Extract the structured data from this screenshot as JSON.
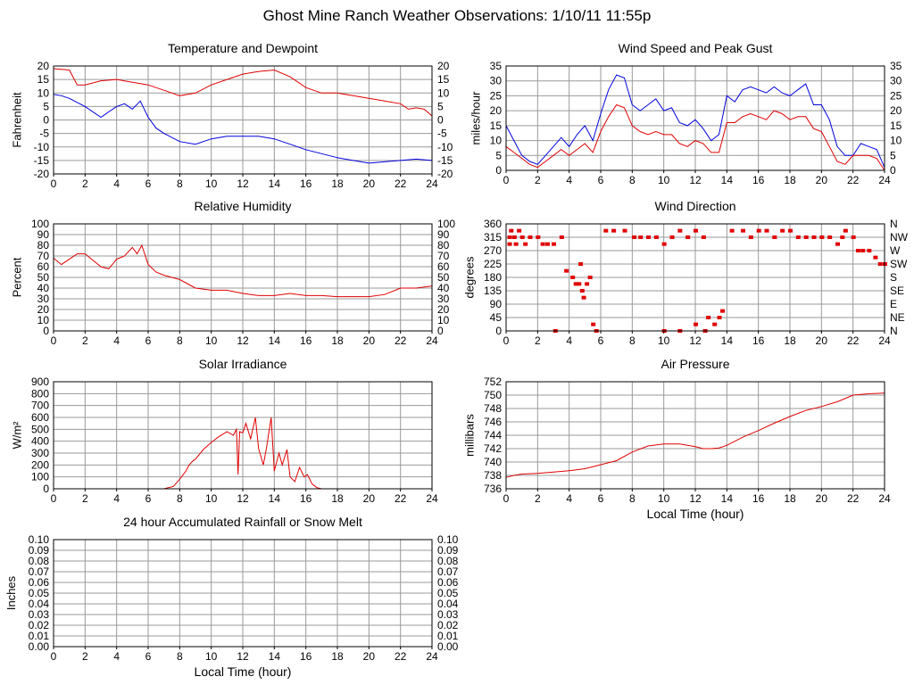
{
  "page_title": "Ghost Mine Ranch Weather Observations: 1/10/11 11:55p",
  "colors": {
    "red": "#e00000",
    "blue": "#0000e0",
    "grid": "#9a9a9a",
    "frame": "#000000"
  },
  "chart_data": [
    {
      "id": "temperature",
      "type": "line",
      "title": "Temperature and Dewpoint",
      "xlabel": "",
      "ylabel": "Fahrenheit",
      "xlim": [
        0,
        24
      ],
      "ylim": [
        -20,
        20
      ],
      "xticks": [
        "0",
        "2",
        "4",
        "6",
        "8",
        "10",
        "12",
        "14",
        "16",
        "18",
        "20",
        "22",
        "24"
      ],
      "yticks": [
        "20",
        "15",
        "10",
        "5",
        "0",
        "-5",
        "-10",
        "-15",
        "-20"
      ],
      "right_axis": true,
      "grid": true,
      "series": [
        {
          "color": "#e00000",
          "x": [
            0,
            1,
            1.5,
            2,
            3,
            4,
            5,
            6,
            7,
            8,
            9,
            10,
            11,
            12,
            13,
            14,
            15,
            16,
            17,
            18,
            19,
            20,
            21,
            22,
            22.5,
            23,
            23.5,
            24
          ],
          "values": [
            19,
            18.5,
            13,
            13,
            14.5,
            15,
            14,
            13,
            11,
            9,
            10,
            13,
            15,
            17,
            18,
            18.5,
            16,
            12,
            10,
            10,
            9,
            8,
            7,
            6,
            4,
            4.5,
            4,
            1.5
          ]
        },
        {
          "color": "#0000e0",
          "x": [
            0,
            0.5,
            1,
            2,
            3,
            3.5,
            4,
            4.5,
            5,
            5.5,
            6,
            6.5,
            7,
            8,
            9,
            10,
            11,
            12,
            13,
            14,
            15,
            16,
            17,
            18,
            19,
            20,
            21,
            22,
            23,
            24
          ],
          "values": [
            9.5,
            9,
            8,
            5,
            1,
            3,
            5,
            6,
            4,
            7,
            1,
            -3,
            -5,
            -8,
            -9,
            -7,
            -6,
            -6,
            -6,
            -7,
            -9,
            -11,
            -12.5,
            -14,
            -15,
            -16,
            -15.5,
            -15,
            -14.5,
            -15
          ]
        }
      ]
    },
    {
      "id": "wind_speed",
      "type": "line",
      "title": "Wind Speed and Peak Gust",
      "xlabel": "",
      "ylabel": "miles/hour",
      "xlim": [
        0,
        24
      ],
      "ylim": [
        0,
        35
      ],
      "xticks": [
        "0",
        "2",
        "4",
        "6",
        "8",
        "10",
        "12",
        "14",
        "16",
        "18",
        "20",
        "22",
        "24"
      ],
      "yticks": [
        "35",
        "30",
        "25",
        "20",
        "15",
        "10",
        "5",
        "0"
      ],
      "right_axis": true,
      "grid": true,
      "series": [
        {
          "color": "#0000e0",
          "x": [
            0,
            0.5,
            1,
            1.5,
            2,
            2.5,
            3,
            3.5,
            4,
            4.5,
            5,
            5.5,
            6,
            6.5,
            7,
            7.5,
            8,
            8.5,
            9,
            9.5,
            10,
            10.5,
            11,
            11.5,
            12,
            12.5,
            13,
            13.5,
            14,
            14.5,
            15,
            15.5,
            16,
            16.5,
            17,
            17.5,
            18,
            18.5,
            19,
            19.5,
            20,
            20.5,
            21,
            21.5,
            22,
            22.5,
            23,
            23.5,
            24
          ],
          "values": [
            15,
            10,
            5,
            3,
            2,
            5,
            8,
            11,
            8,
            12,
            15,
            10,
            19,
            27,
            32,
            31,
            22,
            20,
            22,
            24,
            20,
            21,
            16,
            15,
            17,
            14,
            10,
            12,
            25,
            23,
            27,
            28,
            27,
            26,
            28,
            26,
            25,
            27,
            29,
            22,
            22,
            17,
            8,
            5,
            5,
            9,
            8,
            7,
            1
          ]
        },
        {
          "color": "#e00000",
          "x": [
            0,
            0.5,
            1,
            1.5,
            2,
            2.5,
            3,
            3.5,
            4,
            4.5,
            5,
            5.5,
            6,
            6.5,
            7,
            7.5,
            8,
            8.5,
            9,
            9.5,
            10,
            10.5,
            11,
            11.5,
            12,
            12.5,
            13,
            13.5,
            14,
            14.5,
            15,
            15.5,
            16,
            16.5,
            17,
            17.5,
            18,
            18.5,
            19,
            19.5,
            20,
            20.5,
            21,
            21.5,
            22,
            22.5,
            23,
            23.5,
            24
          ],
          "values": [
            8,
            6,
            4,
            2,
            1,
            3,
            5,
            7,
            5,
            7,
            9,
            6,
            13,
            18,
            22,
            21,
            15,
            13,
            12,
            13,
            12,
            12,
            9,
            8,
            10,
            9,
            6,
            6,
            16,
            16,
            18,
            19,
            18,
            17,
            20,
            19,
            17,
            18,
            18,
            14,
            13,
            8,
            3,
            2,
            5,
            5,
            5,
            4,
            0
          ]
        }
      ]
    },
    {
      "id": "humidity",
      "type": "line",
      "title": "Relative Humidity",
      "xlabel": "",
      "ylabel": "Percent",
      "xlim": [
        0,
        24
      ],
      "ylim": [
        0,
        100
      ],
      "xticks": [
        "0",
        "2",
        "4",
        "6",
        "8",
        "10",
        "12",
        "14",
        "16",
        "18",
        "20",
        "22",
        "24"
      ],
      "yticks": [
        "100",
        "90",
        "80",
        "70",
        "60",
        "50",
        "40",
        "30",
        "20",
        "10",
        "0"
      ],
      "right_axis": true,
      "grid": true,
      "series": [
        {
          "color": "#e00000",
          "x": [
            0,
            0.5,
            1,
            1.5,
            2,
            3,
            3.5,
            4,
            4.5,
            5,
            5.3,
            5.6,
            6,
            6.5,
            7,
            8,
            9,
            10,
            11,
            12,
            13,
            14,
            15,
            16,
            17,
            18,
            19,
            20,
            21,
            22,
            23,
            24
          ],
          "values": [
            68,
            62,
            67,
            72,
            72,
            60,
            58,
            67,
            70,
            78,
            72,
            80,
            62,
            55,
            52,
            48,
            40,
            38,
            38,
            35,
            33,
            33,
            35,
            33,
            33,
            32,
            32,
            32,
            34,
            40,
            40,
            42
          ]
        }
      ]
    },
    {
      "id": "wind_direction",
      "type": "scatter",
      "title": "Wind Direction",
      "xlabel": "",
      "ylabel": "degrees",
      "xlim": [
        0,
        24
      ],
      "ylim": [
        0,
        360
      ],
      "xticks": [
        "0",
        "2",
        "4",
        "6",
        "8",
        "10",
        "12",
        "14",
        "16",
        "18",
        "20",
        "22",
        "24"
      ],
      "yticks": [
        "360",
        "315",
        "270",
        "225",
        "180",
        "135",
        "90",
        "45",
        "0"
      ],
      "right_labels": [
        "N",
        "NW",
        "W",
        "SW",
        "S",
        "SE",
        "E",
        "NE",
        "N"
      ],
      "grid": true,
      "series": [
        {
          "color": "#e00000",
          "points": [
            [
              0.2,
              315
            ],
            [
              0.5,
              315
            ],
            [
              1,
              315
            ],
            [
              1.5,
              315
            ],
            [
              2,
              315
            ],
            [
              0.2,
              292
            ],
            [
              0.6,
              292
            ],
            [
              1.2,
              292
            ],
            [
              2.3,
              292
            ],
            [
              2.6,
              292
            ],
            [
              3,
              292
            ],
            [
              0.3,
              337
            ],
            [
              0.8,
              337
            ],
            [
              3.5,
              315
            ],
            [
              3.8,
              202
            ],
            [
              4.2,
              180
            ],
            [
              4.4,
              158
            ],
            [
              4.6,
              158
            ],
            [
              4.8,
              135
            ],
            [
              4.9,
              112
            ],
            [
              5.1,
              158
            ],
            [
              4.7,
              225
            ],
            [
              5.3,
              180
            ],
            [
              5.5,
              22
            ],
            [
              5.7,
              0
            ],
            [
              3.1,
              0
            ],
            [
              6.3,
              337
            ],
            [
              6.8,
              337
            ],
            [
              7.5,
              337
            ],
            [
              8.1,
              315
            ],
            [
              8.5,
              315
            ],
            [
              9,
              315
            ],
            [
              9.5,
              315
            ],
            [
              10,
              292
            ],
            [
              10.5,
              315
            ],
            [
              11,
              337
            ],
            [
              11.5,
              315
            ],
            [
              12,
              337
            ],
            [
              12.5,
              315
            ],
            [
              10,
              0
            ],
            [
              11,
              0
            ],
            [
              12,
              22
            ],
            [
              12.8,
              45
            ],
            [
              13.2,
              22
            ],
            [
              13.5,
              45
            ],
            [
              13.7,
              67
            ],
            [
              12.6,
              0
            ],
            [
              14.3,
              337
            ],
            [
              15,
              337
            ],
            [
              15.5,
              315
            ],
            [
              16,
              337
            ],
            [
              16.5,
              337
            ],
            [
              17,
              315
            ],
            [
              17.5,
              337
            ],
            [
              18,
              337
            ],
            [
              18.5,
              315
            ],
            [
              19,
              315
            ],
            [
              19.5,
              315
            ],
            [
              20,
              315
            ],
            [
              20.5,
              315
            ],
            [
              21,
              292
            ],
            [
              21.3,
              315
            ],
            [
              21.5,
              337
            ],
            [
              22,
              315
            ],
            [
              22.3,
              270
            ],
            [
              22.6,
              270
            ],
            [
              23,
              270
            ],
            [
              23.4,
              247
            ],
            [
              23.7,
              225
            ],
            [
              24,
              225
            ]
          ]
        }
      ]
    },
    {
      "id": "solar",
      "type": "line",
      "title": "Solar Irradiance",
      "xlabel": "",
      "ylabel": "W/m²",
      "xlim": [
        0,
        24
      ],
      "ylim": [
        0,
        900
      ],
      "xticks": [
        "0",
        "2",
        "4",
        "6",
        "8",
        "10",
        "12",
        "14",
        "16",
        "18",
        "20",
        "22",
        "24"
      ],
      "yticks": [
        "900",
        "800",
        "700",
        "600",
        "500",
        "400",
        "300",
        "200",
        "100",
        "0"
      ],
      "right_axis": false,
      "grid": true,
      "series": [
        {
          "color": "#e00000",
          "x": [
            0,
            7,
            7.6,
            8,
            8.4,
            8.6,
            8.8,
            9,
            9.5,
            10,
            10.5,
            11,
            11.4,
            11.6,
            11.7,
            11.8,
            12,
            12.2,
            12.5,
            12.8,
            13,
            13.3,
            13.5,
            13.8,
            14,
            14.3,
            14.5,
            14.8,
            15,
            15.3,
            15.6,
            15.9,
            16.1,
            16.4,
            16.7,
            17,
            18,
            24
          ],
          "values": [
            0,
            0,
            20,
            80,
            150,
            200,
            230,
            250,
            330,
            390,
            440,
            480,
            450,
            500,
            120,
            480,
            470,
            550,
            420,
            600,
            340,
            200,
            340,
            600,
            150,
            300,
            200,
            330,
            100,
            60,
            180,
            100,
            120,
            40,
            10,
            0,
            0,
            0
          ]
        }
      ]
    },
    {
      "id": "pressure",
      "type": "line",
      "title": "Air Pressure",
      "xlabel": "Local Time (hour)",
      "ylabel": "millibars",
      "xlim": [
        0,
        24
      ],
      "ylim": [
        736,
        752
      ],
      "xticks": [
        "0",
        "2",
        "4",
        "6",
        "8",
        "10",
        "12",
        "14",
        "16",
        "18",
        "20",
        "22",
        "24"
      ],
      "yticks": [
        "752",
        "750",
        "748",
        "746",
        "744",
        "742",
        "740",
        "738",
        "736"
      ],
      "right_axis": false,
      "grid": true,
      "series": [
        {
          "color": "#e00000",
          "x": [
            0,
            0.5,
            1,
            2,
            3,
            4,
            5,
            6,
            7,
            8,
            9,
            10,
            11,
            12,
            12.5,
            13,
            13.5,
            14,
            15,
            16,
            17,
            18,
            19,
            20,
            21,
            22,
            23,
            24
          ],
          "values": [
            737.7,
            738,
            738.2,
            738.3,
            738.5,
            738.7,
            739,
            739.6,
            740.2,
            741.5,
            742.4,
            742.7,
            742.7,
            742.3,
            742,
            742,
            742.1,
            742.5,
            743.7,
            744.7,
            745.8,
            746.8,
            747.7,
            748.3,
            749,
            750,
            750.2,
            750.3
          ]
        }
      ]
    },
    {
      "id": "rainfall",
      "type": "line",
      "title": "24 hour Accumulated Rainfall or Snow Melt",
      "xlabel": "Local Time (hour)",
      "ylabel": "Inches",
      "xlim": [
        0,
        24
      ],
      "ylim": [
        0,
        0.1
      ],
      "xticks": [
        "0",
        "2",
        "4",
        "6",
        "8",
        "10",
        "12",
        "14",
        "16",
        "18",
        "20",
        "22",
        "24"
      ],
      "yticks": [
        "0.10",
        "0.09",
        "0.08",
        "0.07",
        "0.06",
        "0.05",
        "0.04",
        "0.03",
        "0.02",
        "0.01",
        "0.00"
      ],
      "right_axis": true,
      "grid": true,
      "series": [
        {
          "color": "#e00000",
          "x": [
            0,
            24
          ],
          "values": [
            0,
            0
          ]
        }
      ]
    }
  ]
}
